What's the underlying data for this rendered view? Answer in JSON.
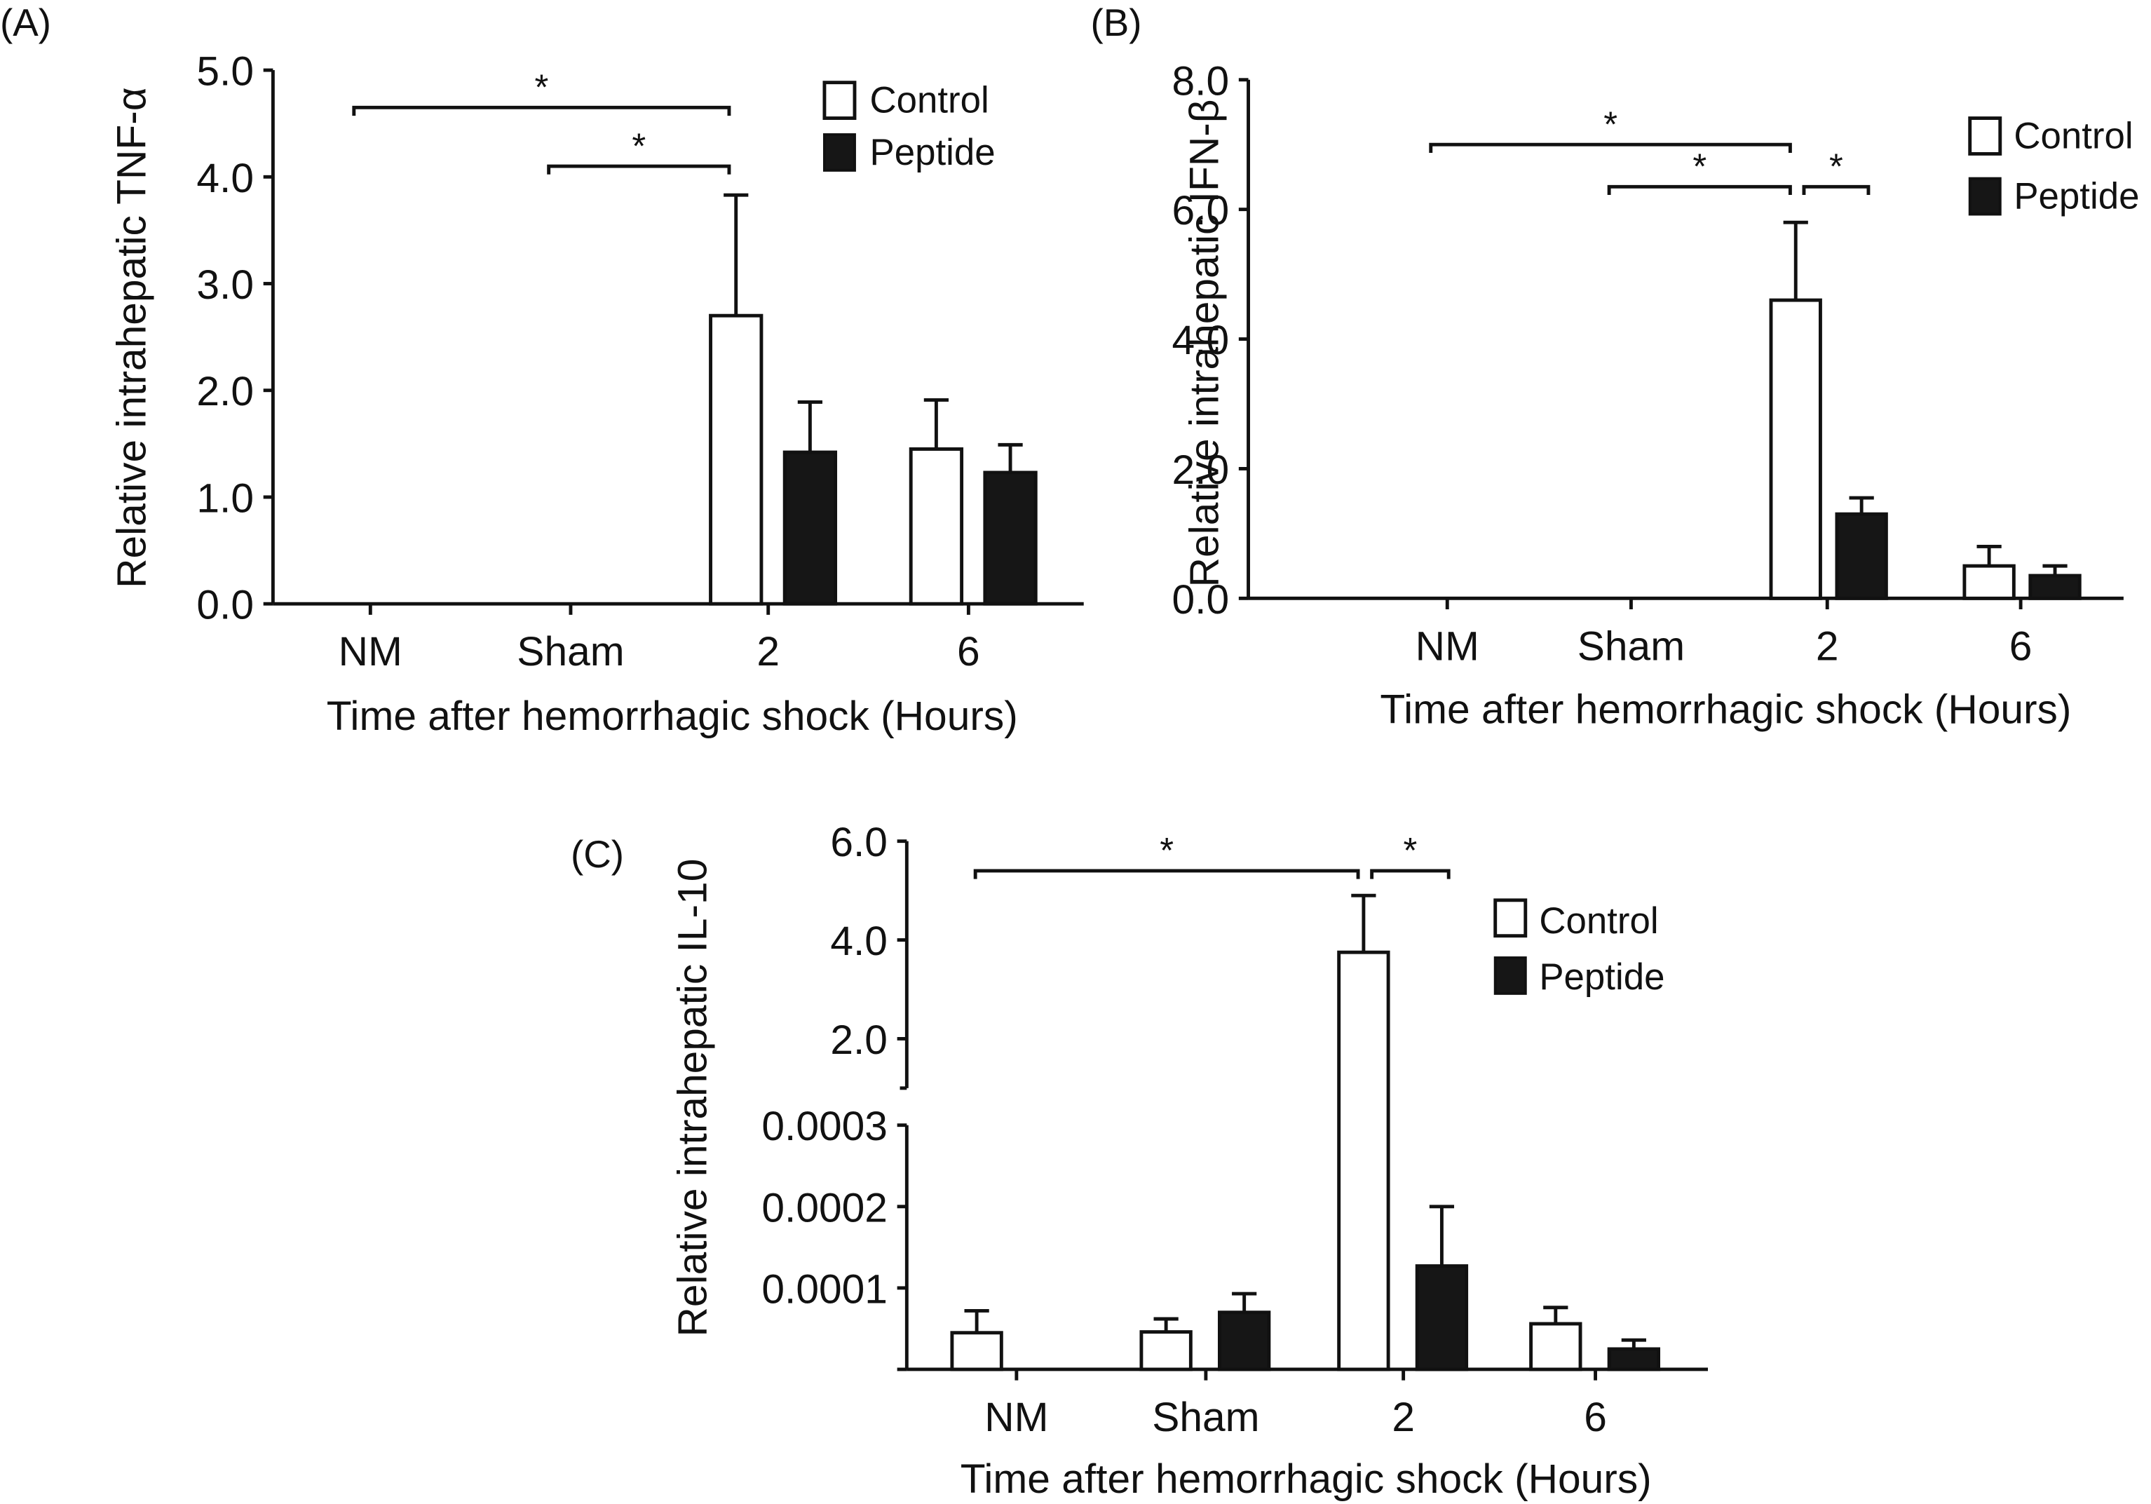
{
  "legend": {
    "control": "Control",
    "peptide": "Peptide"
  },
  "colors": {
    "control_fill": "#ffffff",
    "peptide_fill": "#161616",
    "stroke": "#111111"
  },
  "chart_data": [
    {
      "panel": "(A)",
      "type": "bar",
      "title": "",
      "ylabel": "Relative intrahepatic TNF-α",
      "xlabel": "Time after hemorrhagic shock (Hours)",
      "categories": [
        "NM",
        "Sham",
        "2",
        "6"
      ],
      "yticks": [
        "0.0",
        "1.0",
        "2.0",
        "3.0",
        "4.0",
        "5.0"
      ],
      "ylim": [
        0,
        5
      ],
      "legend_position": "top-right",
      "series": [
        {
          "name": "Control",
          "values": [
            0,
            0,
            2.7,
            1.45
          ],
          "error": [
            0,
            0,
            3.83,
            1.91
          ]
        },
        {
          "name": "Peptide",
          "values": [
            0,
            0,
            1.42,
            1.23
          ],
          "error": [
            0,
            0,
            1.89,
            1.49
          ]
        }
      ],
      "significance": [
        {
          "from": "NM",
          "to": "2 Control",
          "label": "*",
          "level": 4.65
        },
        {
          "from": "Sham",
          "to": "2 Control",
          "label": "*",
          "level": 4.1
        }
      ]
    },
    {
      "panel": "(B)",
      "type": "bar",
      "title": "",
      "ylabel": "Relative intrahepatic IFN-β",
      "xlabel": "Time after hemorrhagic shock (Hours)",
      "categories": [
        "NM",
        "Sham",
        "2",
        "6"
      ],
      "yticks": [
        "0.0",
        "2.0",
        "4.0",
        "6.0",
        "8.0"
      ],
      "ylim": [
        0,
        8
      ],
      "legend_position": "top-right",
      "series": [
        {
          "name": "Control",
          "values": [
            0,
            0,
            4.6,
            0.5
          ],
          "error": [
            0,
            0,
            5.8,
            0.8
          ]
        },
        {
          "name": "Peptide",
          "values": [
            0,
            0,
            1.3,
            0.35
          ],
          "error": [
            0,
            0,
            1.55,
            0.5
          ]
        }
      ],
      "significance": [
        {
          "from": "NM",
          "to": "2 Control",
          "label": "*",
          "level": 7.0
        },
        {
          "from": "Sham",
          "to": "2 Control",
          "label": "*",
          "level": 6.35
        },
        {
          "from": "2 Control",
          "to": "2 Peptide",
          "label": "*",
          "level": 6.35
        }
      ]
    },
    {
      "panel": "(C)",
      "type": "bar",
      "title": "",
      "ylabel": "Relative intrahepatic IL-10",
      "xlabel": "Time after hemorrhagic shock (Hours)",
      "categories": [
        "NM",
        "Sham",
        "2",
        "6"
      ],
      "yticks_lower": [
        "0.0001",
        "0.0002",
        "0.0003"
      ],
      "yticks_upper": [
        "2.0",
        "4.0",
        "6.0"
      ],
      "ylim_lower": [
        0,
        0.0003
      ],
      "ylim_upper": [
        1.0,
        6.0
      ],
      "axis_break": true,
      "legend_position": "top-right",
      "series": [
        {
          "name": "Control",
          "values": [
            4.5e-05,
            4.6e-05,
            3.75,
            5.6e-05
          ],
          "error": [
            7.2e-05,
            6.2e-05,
            4.9,
            7.6e-05
          ]
        },
        {
          "name": "Peptide",
          "values": [
            0,
            7e-05,
            0.000127,
            2.5e-05
          ],
          "error": [
            0,
            9.3e-05,
            0.0002,
            3.6e-05
          ]
        }
      ],
      "significance": [
        {
          "from": "NM",
          "to": "2 Control",
          "label": "*",
          "level": 5.4
        },
        {
          "from": "2 Control",
          "to": "2 Peptide",
          "label": "*",
          "level": 5.4
        }
      ]
    }
  ]
}
